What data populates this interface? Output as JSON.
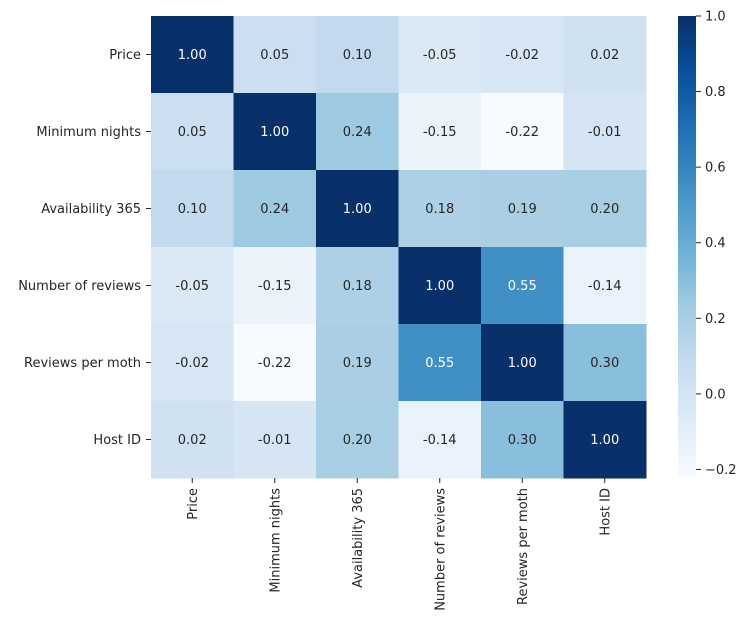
{
  "chart_data": {
    "type": "heatmap",
    "title": "",
    "xlabel": "",
    "ylabel": "",
    "rows": [
      "Price",
      "Minimum nights",
      "Availability 365",
      "Number of reviews",
      "Reviews per moth",
      "Host ID"
    ],
    "columns": [
      "Price",
      "Minimum nights",
      "Availability 365",
      "Number of reviews",
      "Reviews per moth",
      "Host ID"
    ],
    "values": [
      [
        1.0,
        0.05,
        0.1,
        -0.05,
        -0.02,
        0.02
      ],
      [
        0.05,
        1.0,
        0.24,
        -0.15,
        -0.22,
        -0.01
      ],
      [
        0.1,
        0.24,
        1.0,
        0.18,
        0.19,
        0.2
      ],
      [
        -0.05,
        -0.15,
        0.18,
        1.0,
        0.55,
        -0.14
      ],
      [
        -0.02,
        -0.22,
        0.19,
        0.55,
        1.0,
        0.3
      ],
      [
        0.02,
        -0.01,
        0.2,
        -0.14,
        0.3,
        1.0
      ]
    ],
    "annotation_format": "0.00",
    "colormap": "Blues",
    "colorbar": {
      "range": [
        -0.22,
        1.0
      ],
      "ticks": [
        -0.2,
        0.0,
        0.2,
        0.4,
        0.6,
        0.8,
        1.0
      ],
      "tick_labels": [
        "−0.2",
        "0.0",
        "0.2",
        "0.4",
        "0.6",
        "0.8",
        "1.0"
      ]
    },
    "grid": false,
    "legend": "colorbar-right"
  }
}
